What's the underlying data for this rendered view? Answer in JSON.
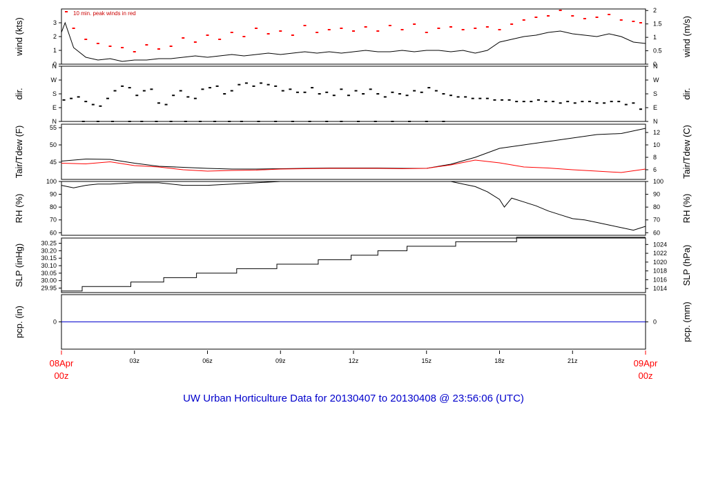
{
  "title": "UW Urban Horticulture Data for 20130407  to  20130408 @ 23:56:06  (UTC)",
  "annotation": "10 min. peak winds in red",
  "colors": {
    "primary": "#000000",
    "secondary": "#ff0000",
    "precip": "#0000cc",
    "title": "#0000cc"
  },
  "time_axis": {
    "start_label": [
      "08Apr",
      "00z"
    ],
    "end_label": [
      "09Apr",
      "00z"
    ],
    "ticks": [
      {
        "hour": 3,
        "label": "03z"
      },
      {
        "hour": 6,
        "label": "06z"
      },
      {
        "hour": 9,
        "label": "09z"
      },
      {
        "hour": 12,
        "label": "12z"
      },
      {
        "hour": 15,
        "label": "15z"
      },
      {
        "hour": 18,
        "label": "18z"
      },
      {
        "hour": 21,
        "label": "21z"
      }
    ]
  },
  "chart_data": [
    {
      "type": "line",
      "panel": "wind",
      "ylabel_left": "wind (kts)",
      "ylabel_right": "wind (m/s)",
      "ylim": [
        0,
        4
      ],
      "left_ticks": [
        {
          "v": 0,
          "label": "0"
        },
        {
          "v": 1,
          "label": "1"
        },
        {
          "v": 2,
          "label": "2"
        },
        {
          "v": 3,
          "label": "3"
        }
      ],
      "right_ticks": [
        {
          "v": 0,
          "label": "0"
        },
        {
          "v": 0.972,
          "label": "0.5"
        },
        {
          "v": 1.944,
          "label": "1"
        },
        {
          "v": 2.916,
          "label": "1.5"
        },
        {
          "v": 3.888,
          "label": "2"
        }
      ],
      "series": [
        {
          "role": "line",
          "color": "#000000",
          "x": [
            0,
            0.15,
            0.5,
            1,
            1.5,
            2,
            2.5,
            3,
            3.5,
            4,
            4.5,
            5,
            5.5,
            6,
            6.5,
            7,
            7.5,
            8,
            8.5,
            9,
            9.5,
            10,
            10.5,
            11,
            11.5,
            12,
            12.5,
            13,
            13.5,
            14,
            14.5,
            15,
            15.5,
            16,
            16.5,
            17,
            17.5,
            18,
            18.5,
            19,
            19.5,
            20,
            20.5,
            21,
            21.5,
            22,
            22.5,
            23,
            23.5,
            24
          ],
          "values": [
            2.3,
            3.0,
            1.2,
            0.5,
            0.3,
            0.4,
            0.2,
            0.3,
            0.3,
            0.4,
            0.4,
            0.5,
            0.6,
            0.5,
            0.6,
            0.7,
            0.6,
            0.7,
            0.8,
            0.7,
            0.8,
            0.9,
            0.8,
            0.9,
            0.8,
            0.9,
            1.0,
            0.9,
            0.9,
            1.0,
            0.9,
            1.0,
            1.0,
            0.9,
            1.0,
            0.8,
            1.0,
            1.6,
            1.8,
            2.0,
            2.1,
            2.3,
            2.4,
            2.2,
            2.1,
            2.0,
            2.2,
            2.0,
            1.6,
            1.5
          ]
        },
        {
          "role": "points",
          "color": "#ff0000",
          "x": [
            0.2,
            0.5,
            1,
            1.5,
            2,
            2.5,
            3,
            3.5,
            4,
            4.5,
            5,
            5.5,
            6,
            6.5,
            7,
            7.5,
            8,
            8.5,
            9,
            9.5,
            10,
            10.5,
            11,
            11.5,
            12,
            12.5,
            13,
            13.5,
            14,
            14.5,
            15,
            15.5,
            16,
            16.5,
            17,
            17.5,
            18,
            18.5,
            19,
            19.5,
            20,
            20.5,
            21,
            21.5,
            22,
            22.5,
            23,
            23.5,
            23.8
          ],
          "values": [
            3.8,
            2.6,
            1.8,
            1.5,
            1.3,
            1.2,
            0.9,
            1.4,
            1.1,
            1.3,
            1.9,
            1.6,
            2.1,
            1.8,
            2.3,
            2.0,
            2.6,
            2.2,
            2.4,
            2.1,
            2.8,
            2.3,
            2.5,
            2.6,
            2.4,
            2.7,
            2.4,
            2.8,
            2.5,
            2.9,
            2.3,
            2.6,
            2.7,
            2.5,
            2.6,
            2.7,
            2.5,
            2.9,
            3.2,
            3.4,
            3.5,
            3.9,
            3.5,
            3.3,
            3.4,
            3.6,
            3.2,
            3.1,
            3.0
          ]
        }
      ]
    },
    {
      "type": "scatter",
      "panel": "dir",
      "ylabel_left": "dir.",
      "ylabel_right": "dir.",
      "ylim": [
        0,
        360
      ],
      "left_ticks": [
        {
          "v": 0,
          "label": "N"
        },
        {
          "v": 90,
          "label": "E"
        },
        {
          "v": 180,
          "label": "S"
        },
        {
          "v": 270,
          "label": "W"
        },
        {
          "v": 360,
          "label": "N"
        }
      ],
      "right_ticks": [
        {
          "v": 0,
          "label": "N"
        },
        {
          "v": 90,
          "label": "E"
        },
        {
          "v": 180,
          "label": "S"
        },
        {
          "v": 270,
          "label": "W"
        },
        {
          "v": 360,
          "label": "N"
        }
      ],
      "series": [
        {
          "role": "points",
          "color": "#000000",
          "x": [
            0.1,
            0.4,
            0.7,
            1.0,
            1.3,
            1.6,
            1.9,
            2.2,
            2.5,
            2.8,
            3.1,
            3.4,
            3.7,
            4.0,
            4.3,
            4.6,
            4.9,
            5.2,
            5.5,
            5.8,
            6.1,
            6.4,
            6.7,
            7.0,
            7.3,
            7.6,
            7.9,
            8.2,
            8.5,
            8.8,
            9.1,
            9.4,
            9.7,
            10.0,
            10.3,
            10.6,
            10.9,
            11.2,
            11.5,
            11.8,
            12.1,
            12.4,
            12.7,
            13.0,
            13.3,
            13.6,
            13.9,
            14.2,
            14.5,
            14.8,
            15.1,
            15.4,
            15.7,
            16.0,
            16.3,
            16.6,
            16.9,
            17.2,
            17.5,
            17.8,
            18.1,
            18.4,
            18.7,
            19.0,
            19.3,
            19.6,
            19.9,
            20.2,
            20.5,
            20.8,
            21.1,
            21.4,
            21.7,
            22.0,
            22.3,
            22.6,
            22.9,
            23.2,
            23.5,
            23.8
          ],
          "values": [
            140,
            150,
            160,
            130,
            110,
            100,
            150,
            200,
            230,
            220,
            170,
            200,
            210,
            120,
            110,
            170,
            200,
            160,
            150,
            210,
            220,
            230,
            180,
            200,
            240,
            250,
            230,
            250,
            240,
            230,
            200,
            210,
            190,
            190,
            220,
            180,
            190,
            170,
            210,
            170,
            200,
            180,
            210,
            180,
            160,
            190,
            180,
            170,
            200,
            190,
            220,
            200,
            180,
            170,
            160,
            160,
            150,
            150,
            150,
            140,
            140,
            140,
            130,
            130,
            130,
            140,
            130,
            130,
            120,
            130,
            120,
            130,
            130,
            120,
            120,
            130,
            130,
            110,
            120,
            80
          ]
        },
        {
          "role": "points",
          "color": "#000000",
          "x": [
            0.9,
            1.5,
            2.1,
            2.8,
            3.3,
            3.9,
            4.5,
            5.1,
            5.7,
            6.3,
            6.9,
            7.4,
            8.1,
            8.8,
            9.5,
            10.2,
            10.9,
            11.5,
            12.2,
            12.9,
            13.6,
            14.3,
            15.0,
            15.7
          ],
          "values": [
            0,
            0,
            0,
            0,
            0,
            0,
            0,
            0,
            0,
            0,
            0,
            0,
            0,
            0,
            0,
            0,
            0,
            0,
            0,
            0,
            0,
            0,
            0,
            0
          ]
        }
      ]
    },
    {
      "type": "line",
      "panel": "temp",
      "ylabel_left": "Tair/Tdew (F)",
      "ylabel_right": "Tair/Tdew (C)",
      "ylim": [
        40,
        56
      ],
      "left_ticks": [
        {
          "v": 45,
          "label": "45"
        },
        {
          "v": 50,
          "label": "50"
        },
        {
          "v": 55,
          "label": "55"
        }
      ],
      "right_ticks": [
        {
          "v": 42.8,
          "label": "6"
        },
        {
          "v": 46.4,
          "label": "8"
        },
        {
          "v": 50,
          "label": "10"
        },
        {
          "v": 53.6,
          "label": "12"
        }
      ],
      "series": [
        {
          "name": "Tair",
          "color": "#000000",
          "x": [
            0,
            1,
            2,
            3,
            4,
            5,
            6,
            7,
            8,
            9,
            10,
            11,
            12,
            13,
            14,
            15,
            16,
            17,
            18,
            19,
            20,
            21,
            22,
            23,
            24
          ],
          "values": [
            45.3,
            45.9,
            45.8,
            44.7,
            43.8,
            43.5,
            43.2,
            43.0,
            43.0,
            43.1,
            43.2,
            43.3,
            43.3,
            43.3,
            43.2,
            43.2,
            44.4,
            46.4,
            49.0,
            50.0,
            51.0,
            52.0,
            53.0,
            53.3,
            54.8
          ]
        },
        {
          "name": "Tdew",
          "color": "#ff0000",
          "x": [
            0,
            1,
            2,
            3,
            4,
            5,
            6,
            7,
            8,
            9,
            10,
            11,
            12,
            13,
            14,
            15,
            16,
            17,
            18,
            19,
            20,
            21,
            22,
            23,
            24
          ],
          "values": [
            44.7,
            44.5,
            45.1,
            44.0,
            43.6,
            42.8,
            42.4,
            42.6,
            42.7,
            43.0,
            43.1,
            43.2,
            43.2,
            43.2,
            43.1,
            43.2,
            44.2,
            45.6,
            44.8,
            43.6,
            43.3,
            42.8,
            42.4,
            42.0,
            43.0
          ]
        }
      ]
    },
    {
      "type": "line",
      "panel": "rh",
      "ylabel_left": "RH (%)",
      "ylabel_right": "RH (%)",
      "ylim": [
        58,
        100
      ],
      "left_ticks": [
        {
          "v": 60,
          "label": "60"
        },
        {
          "v": 70,
          "label": "70"
        },
        {
          "v": 80,
          "label": "80"
        },
        {
          "v": 90,
          "label": "90"
        },
        {
          "v": 100,
          "label": "100"
        }
      ],
      "right_ticks": [
        {
          "v": 60,
          "label": "60"
        },
        {
          "v": 70,
          "label": "70"
        },
        {
          "v": 80,
          "label": "80"
        },
        {
          "v": 90,
          "label": "90"
        },
        {
          "v": 100,
          "label": "100"
        }
      ],
      "series": [
        {
          "color": "#000000",
          "x": [
            0,
            0.5,
            1,
            1.5,
            2,
            3,
            4,
            5,
            6,
            7,
            8,
            9,
            10,
            11,
            12,
            13,
            14,
            15,
            16,
            16.5,
            17,
            17.5,
            18,
            18.2,
            18.5,
            19,
            19.5,
            20,
            20.5,
            21,
            21.5,
            22,
            22.5,
            23,
            23.5,
            24
          ],
          "values": [
            97,
            95,
            97,
            98,
            98,
            99,
            99,
            97,
            97,
            98,
            99,
            100,
            100,
            100,
            100,
            100,
            100,
            100,
            100,
            98,
            96,
            92,
            86,
            80,
            87,
            84,
            81,
            77,
            74,
            71,
            70,
            68,
            66,
            64,
            62,
            65
          ]
        }
      ]
    },
    {
      "type": "line",
      "panel": "slp",
      "ylabel_left": "SLP (inHg)",
      "ylabel_right": "SLP (hPa)",
      "ylim": [
        29.92,
        30.285
      ],
      "left_ticks": [
        {
          "v": 29.95,
          "label": "29.95"
        },
        {
          "v": 30.0,
          "label": "30.00"
        },
        {
          "v": 30.05,
          "label": "30.05"
        },
        {
          "v": 30.1,
          "label": "30.10"
        },
        {
          "v": 30.15,
          "label": "30.15"
        },
        {
          "v": 30.2,
          "label": "30.20"
        },
        {
          "v": 30.25,
          "label": "30.25"
        }
      ],
      "right_ticks": [
        {
          "v": 29.947,
          "label": "1014"
        },
        {
          "v": 30.006,
          "label": "1016"
        },
        {
          "v": 30.065,
          "label": "1018"
        },
        {
          "v": 30.124,
          "label": "1020"
        },
        {
          "v": 30.183,
          "label": "1022"
        },
        {
          "v": 30.242,
          "label": "1024"
        }
      ],
      "series": [
        {
          "color": "#000000",
          "x": [
            0,
            0.85,
            0.85,
            2.85,
            2.85,
            4.2,
            4.2,
            5.55,
            5.55,
            7.2,
            7.2,
            8.85,
            8.85,
            10.55,
            10.55,
            11.9,
            11.9,
            13.0,
            13.0,
            14.2,
            14.2,
            16.2,
            16.2,
            18.7,
            18.7,
            24
          ],
          "values": [
            29.93,
            29.93,
            29.96,
            29.96,
            29.99,
            29.99,
            30.02,
            30.02,
            30.05,
            30.05,
            30.08,
            30.08,
            30.11,
            30.11,
            30.14,
            30.14,
            30.17,
            30.17,
            30.2,
            30.2,
            30.23,
            30.23,
            30.26,
            30.26,
            30.29,
            30.29
          ]
        }
      ]
    },
    {
      "type": "line",
      "panel": "pcp",
      "ylabel_left": "pcp. (in)",
      "ylabel_right": "pcp. (mm)",
      "ylim": [
        -1,
        1
      ],
      "left_ticks": [
        {
          "v": 0,
          "label": "0"
        }
      ],
      "right_ticks": [
        {
          "v": 0,
          "label": "0"
        }
      ],
      "series": [
        {
          "color": "#0000cc",
          "x": [
            0,
            24
          ],
          "values": [
            0,
            0
          ]
        }
      ]
    }
  ]
}
